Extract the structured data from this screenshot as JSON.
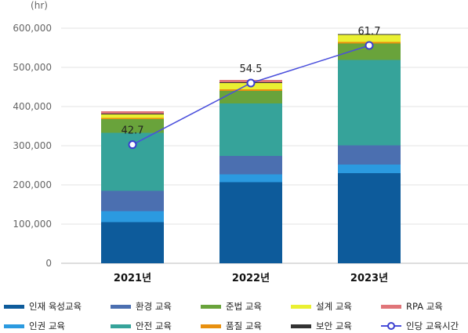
{
  "chart_data": {
    "type": "bar",
    "stacked": true,
    "unit_label": "(hr)",
    "categories": [
      "2021년",
      "2022년",
      "2023년"
    ],
    "ylim": [
      0,
      600000
    ],
    "yticks": [
      "0",
      "100,000",
      "200,000",
      "300,000",
      "400,000",
      "500,000",
      "600,000"
    ],
    "series": [
      {
        "name": "인재 육성교육",
        "color": "#0d5b9b",
        "values": [
          105000,
          207000,
          230000
        ]
      },
      {
        "name": "인권 교육",
        "color": "#2b9ae0",
        "values": [
          28000,
          20000,
          22000
        ]
      },
      {
        "name": "환경 교육",
        "color": "#4b6fb0",
        "values": [
          52000,
          47000,
          49000
        ]
      },
      {
        "name": "안전 교육",
        "color": "#36a39a",
        "values": [
          148000,
          134000,
          218000
        ]
      },
      {
        "name": "준법 교육",
        "color": "#69a33b",
        "values": [
          35000,
          32000,
          42000
        ]
      },
      {
        "name": "품질 교육",
        "color": "#e8900f",
        "values": [
          3000,
          4000,
          4000
        ]
      },
      {
        "name": "설계 교육",
        "color": "#eaf032",
        "values": [
          9000,
          16000,
          18000
        ]
      },
      {
        "name": "보안 교육",
        "color": "#333333",
        "values": [
          2000,
          2000,
          2000
        ]
      },
      {
        "name": "RPA 교육",
        "color": "#e07579",
        "values": [
          6000,
          6000,
          0
        ]
      }
    ],
    "line_series": {
      "name": "인당 교육시간",
      "color": "#4a4fdc",
      "values": [
        42.7,
        54.5,
        61.7
      ],
      "labels": [
        "42.7",
        "54.5",
        "61.7"
      ],
      "ylim": [
        20,
        65
      ]
    },
    "legend_position": "bottom"
  },
  "legend": {
    "row1": [
      "인재 육성교육",
      "환경 교육",
      "준법 교육",
      "설계 교육",
      "RPA 교육"
    ],
    "row2": [
      "인권 교육",
      "안전 교육",
      "품질 교육",
      "보안 교육",
      "인당 교육시간"
    ]
  }
}
